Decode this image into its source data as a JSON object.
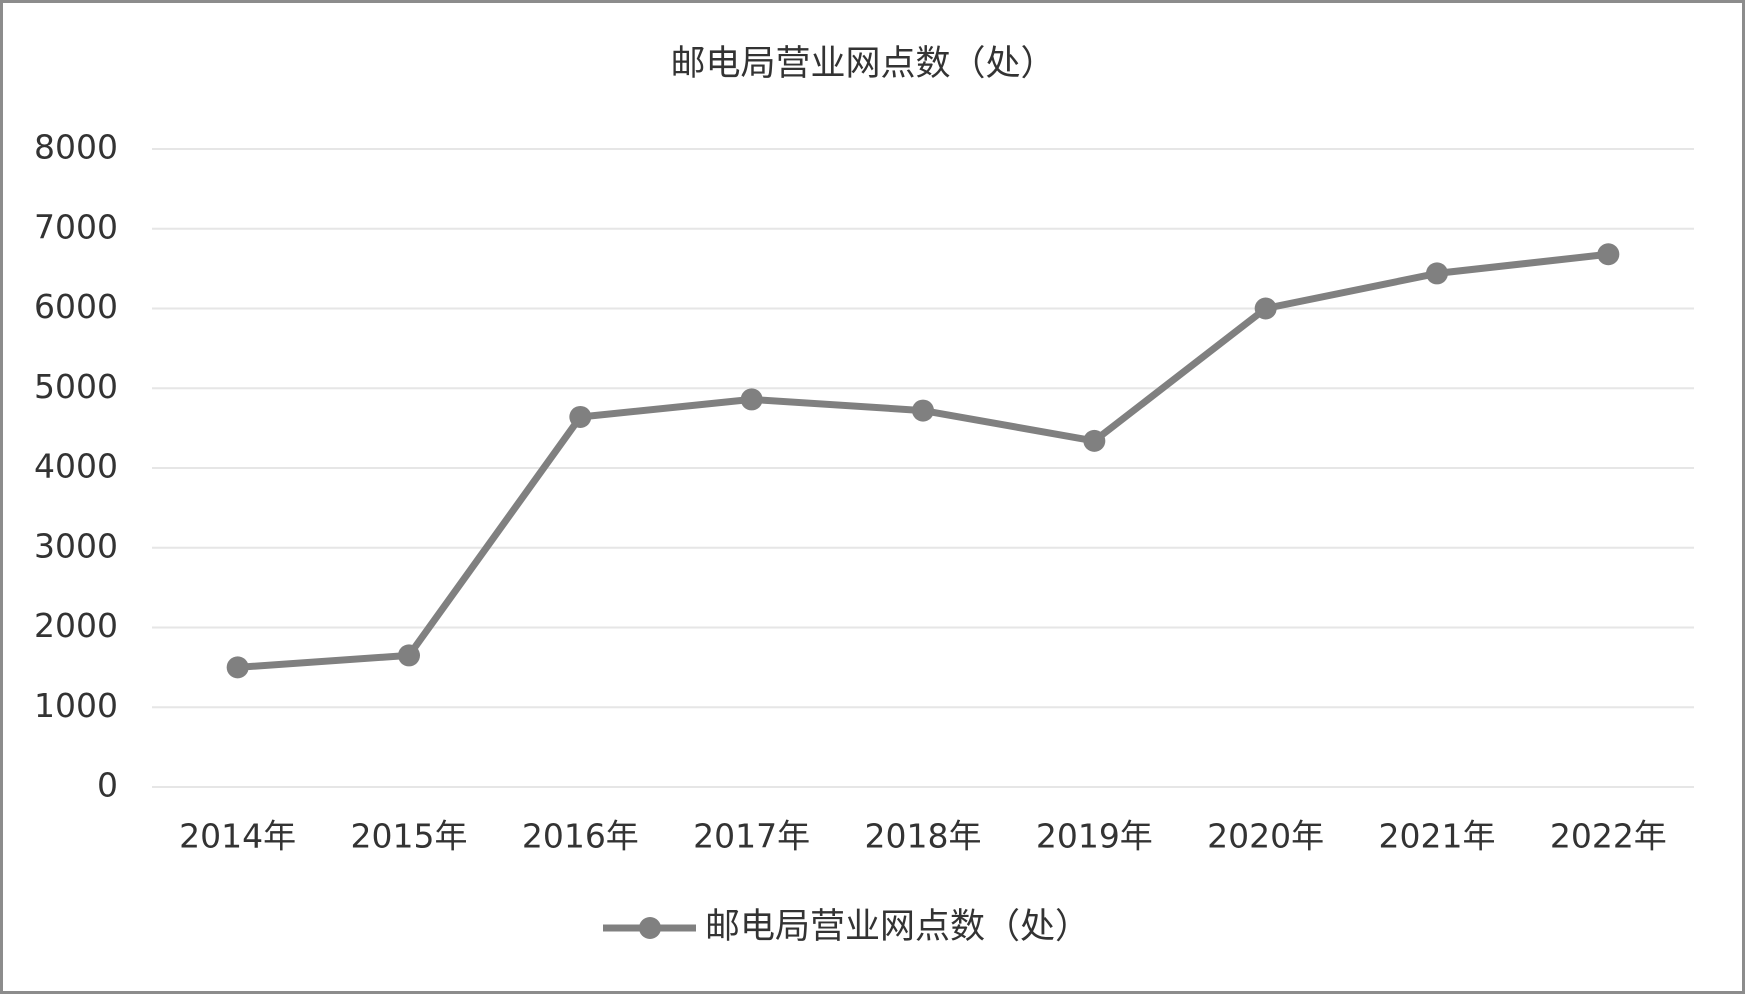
{
  "chart_data": {
    "type": "line",
    "title": "邮电局营业网点数（处）",
    "categories": [
      "2014年",
      "2015年",
      "2016年",
      "2017年",
      "2018年",
      "2019年",
      "2020年",
      "2021年",
      "2022年"
    ],
    "series": [
      {
        "name": "邮电局营业网点数（处）",
        "color": "#808080",
        "values": [
          1500,
          1650,
          4640,
          4860,
          4720,
          4340,
          6000,
          6440,
          6680
        ]
      }
    ],
    "ylim": [
      0,
      8000
    ],
    "yticks": [
      0,
      1000,
      2000,
      3000,
      4000,
      5000,
      6000,
      7000,
      8000
    ],
    "grid": true
  }
}
